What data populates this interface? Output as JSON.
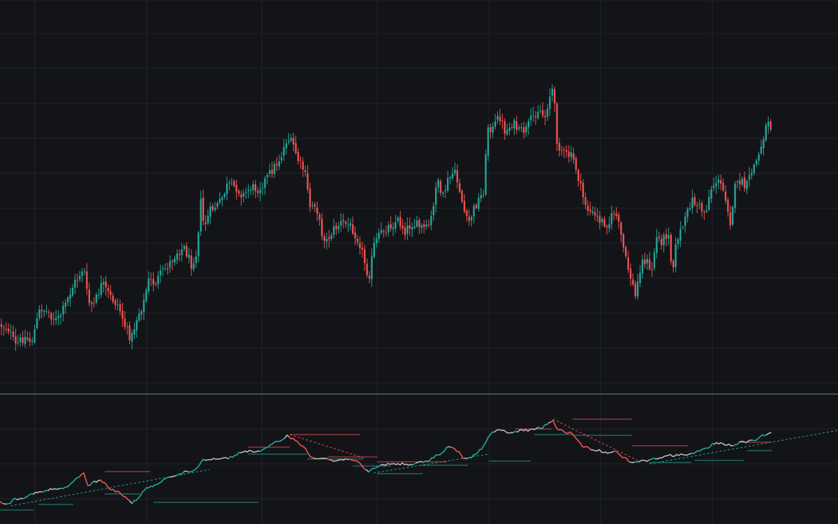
{
  "chart_data": [
    {
      "type": "candlestick",
      "colors": {
        "up": "#26a69a",
        "down": "#ef5350",
        "background": "#131418",
        "grid": "#22252c"
      },
      "grid": true,
      "axes_visible": false,
      "ylim": [
        0,
        560
      ],
      "anchors": [
        [
          0,
          465
        ],
        [
          12,
          470
        ],
        [
          22,
          495
        ],
        [
          35,
          482
        ],
        [
          45,
          490
        ],
        [
          58,
          440
        ],
        [
          70,
          448
        ],
        [
          82,
          460
        ],
        [
          92,
          440
        ],
        [
          105,
          408
        ],
        [
          113,
          395
        ],
        [
          120,
          382
        ],
        [
          126,
          432
        ],
        [
          134,
          438
        ],
        [
          146,
          406
        ],
        [
          158,
          425
        ],
        [
          170,
          438
        ],
        [
          180,
          470
        ],
        [
          188,
          485
        ],
        [
          196,
          455
        ],
        [
          206,
          432
        ],
        [
          212,
          402
        ],
        [
          222,
          405
        ],
        [
          232,
          390
        ],
        [
          242,
          378
        ],
        [
          254,
          360
        ],
        [
          264,
          355
        ],
        [
          274,
          378
        ],
        [
          282,
          360
        ],
        [
          287,
          285
        ],
        [
          292,
          325
        ],
        [
          302,
          300
        ],
        [
          314,
          292
        ],
        [
          326,
          265
        ],
        [
          338,
          268
        ],
        [
          348,
          280
        ],
        [
          358,
          268
        ],
        [
          370,
          270
        ],
        [
          382,
          255
        ],
        [
          392,
          240
        ],
        [
          402,
          225
        ],
        [
          411,
          198
        ],
        [
          420,
          208
        ],
        [
          428,
          232
        ],
        [
          436,
          245
        ],
        [
          444,
          295
        ],
        [
          452,
          290
        ],
        [
          460,
          332
        ],
        [
          468,
          345
        ],
        [
          476,
          330
        ],
        [
          490,
          318
        ],
        [
          504,
          325
        ],
        [
          516,
          350
        ],
        [
          528,
          398
        ],
        [
          536,
          350
        ],
        [
          548,
          330
        ],
        [
          560,
          322
        ],
        [
          570,
          315
        ],
        [
          580,
          330
        ],
        [
          590,
          320
        ],
        [
          602,
          325
        ],
        [
          612,
          328
        ],
        [
          620,
          305
        ],
        [
          626,
          245
        ],
        [
          632,
          290
        ],
        [
          640,
          262
        ],
        [
          650,
          245
        ],
        [
          658,
          270
        ],
        [
          664,
          300
        ],
        [
          670,
          322
        ],
        [
          680,
          295
        ],
        [
          692,
          275
        ],
        [
          699,
          180
        ],
        [
          706,
          185
        ],
        [
          715,
          165
        ],
        [
          724,
          190
        ],
        [
          734,
          175
        ],
        [
          744,
          190
        ],
        [
          754,
          185
        ],
        [
          764,
          165
        ],
        [
          772,
          155
        ],
        [
          780,
          170
        ],
        [
          786,
          140
        ],
        [
          792,
          125
        ],
        [
          798,
          205
        ],
        [
          808,
          220
        ],
        [
          820,
          225
        ],
        [
          826,
          245
        ],
        [
          834,
          280
        ],
        [
          842,
          300
        ],
        [
          852,
          310
        ],
        [
          864,
          318
        ],
        [
          872,
          320
        ],
        [
          880,
          300
        ],
        [
          888,
          330
        ],
        [
          896,
          372
        ],
        [
          904,
          400
        ],
        [
          910,
          425
        ],
        [
          918,
          375
        ],
        [
          926,
          372
        ],
        [
          932,
          395
        ],
        [
          940,
          340
        ],
        [
          948,
          345
        ],
        [
          958,
          330
        ],
        [
          962,
          390
        ],
        [
          970,
          340
        ],
        [
          980,
          320
        ],
        [
          990,
          285
        ],
        [
          1000,
          295
        ],
        [
          1010,
          305
        ],
        [
          1018,
          270
        ],
        [
          1026,
          258
        ],
        [
          1034,
          268
        ],
        [
          1040,
          285
        ],
        [
          1046,
          318
        ],
        [
          1052,
          270
        ],
        [
          1060,
          258
        ],
        [
          1068,
          270
        ],
        [
          1078,
          240
        ],
        [
          1086,
          225
        ],
        [
          1092,
          200
        ],
        [
          1100,
          170
        ],
        [
          1104,
          182
        ]
      ]
    },
    {
      "type": "line",
      "colors": {
        "up": "#26a69a",
        "down": "#ef5350",
        "neutral": "#b5b5b5"
      },
      "ylim": [
        565,
        750
      ],
      "anchors": [
        [
          0,
          718
        ],
        [
          12,
          722
        ],
        [
          20,
          714
        ],
        [
          35,
          712
        ],
        [
          48,
          706
        ],
        [
          62,
          704
        ],
        [
          74,
          700
        ],
        [
          88,
          700
        ],
        [
          100,
          695
        ],
        [
          112,
          682
        ],
        [
          120,
          678
        ],
        [
          126,
          695
        ],
        [
          134,
          690
        ],
        [
          146,
          688
        ],
        [
          158,
          700
        ],
        [
          170,
          705
        ],
        [
          180,
          712
        ],
        [
          188,
          720
        ],
        [
          196,
          715
        ],
        [
          206,
          702
        ],
        [
          214,
          697
        ],
        [
          222,
          695
        ],
        [
          232,
          688
        ],
        [
          242,
          682
        ],
        [
          254,
          680
        ],
        [
          264,
          676
        ],
        [
          276,
          674
        ],
        [
          284,
          668
        ],
        [
          290,
          658
        ],
        [
          302,
          657
        ],
        [
          314,
          656
        ],
        [
          326,
          656
        ],
        [
          338,
          651
        ],
        [
          348,
          646
        ],
        [
          358,
          646
        ],
        [
          370,
          646
        ],
        [
          382,
          642
        ],
        [
          392,
          634
        ],
        [
          402,
          630
        ],
        [
          411,
          624
        ],
        [
          420,
          628
        ],
        [
          428,
          635
        ],
        [
          436,
          640
        ],
        [
          444,
          652
        ],
        [
          452,
          656
        ],
        [
          460,
          656
        ],
        [
          468,
          656
        ],
        [
          476,
          660
        ],
        [
          490,
          658
        ],
        [
          500,
          656
        ],
        [
          510,
          660
        ],
        [
          516,
          665
        ],
        [
          522,
          672
        ],
        [
          528,
          675
        ],
        [
          536,
          670
        ],
        [
          546,
          666
        ],
        [
          556,
          664
        ],
        [
          566,
          664
        ],
        [
          578,
          664
        ],
        [
          588,
          666
        ],
        [
          600,
          662
        ],
        [
          612,
          660
        ],
        [
          624,
          652
        ],
        [
          632,
          650
        ],
        [
          640,
          640
        ],
        [
          650,
          642
        ],
        [
          658,
          648
        ],
        [
          664,
          656
        ],
        [
          670,
          658
        ],
        [
          680,
          650
        ],
        [
          692,
          640
        ],
        [
          699,
          626
        ],
        [
          706,
          618
        ],
        [
          715,
          616
        ],
        [
          724,
          618
        ],
        [
          734,
          620
        ],
        [
          744,
          616
        ],
        [
          756,
          616
        ],
        [
          766,
          614
        ],
        [
          776,
          612
        ],
        [
          784,
          607
        ],
        [
          792,
          602
        ],
        [
          798,
          614
        ],
        [
          808,
          618
        ],
        [
          818,
          620
        ],
        [
          826,
          630
        ],
        [
          834,
          638
        ],
        [
          846,
          643
        ],
        [
          858,
          645
        ],
        [
          870,
          648
        ],
        [
          880,
          645
        ],
        [
          888,
          652
        ],
        [
          896,
          656
        ],
        [
          904,
          662
        ],
        [
          910,
          662
        ],
        [
          920,
          658
        ],
        [
          928,
          660
        ],
        [
          938,
          656
        ],
        [
          948,
          654
        ],
        [
          958,
          652
        ],
        [
          968,
          652
        ],
        [
          980,
          650
        ],
        [
          992,
          650
        ],
        [
          1002,
          645
        ],
        [
          1012,
          642
        ],
        [
          1020,
          636
        ],
        [
          1030,
          634
        ],
        [
          1040,
          636
        ],
        [
          1050,
          638
        ],
        [
          1060,
          633
        ],
        [
          1072,
          632
        ],
        [
          1082,
          630
        ],
        [
          1092,
          624
        ],
        [
          1100,
          620
        ],
        [
          1106,
          621
        ]
      ]
    }
  ]
}
